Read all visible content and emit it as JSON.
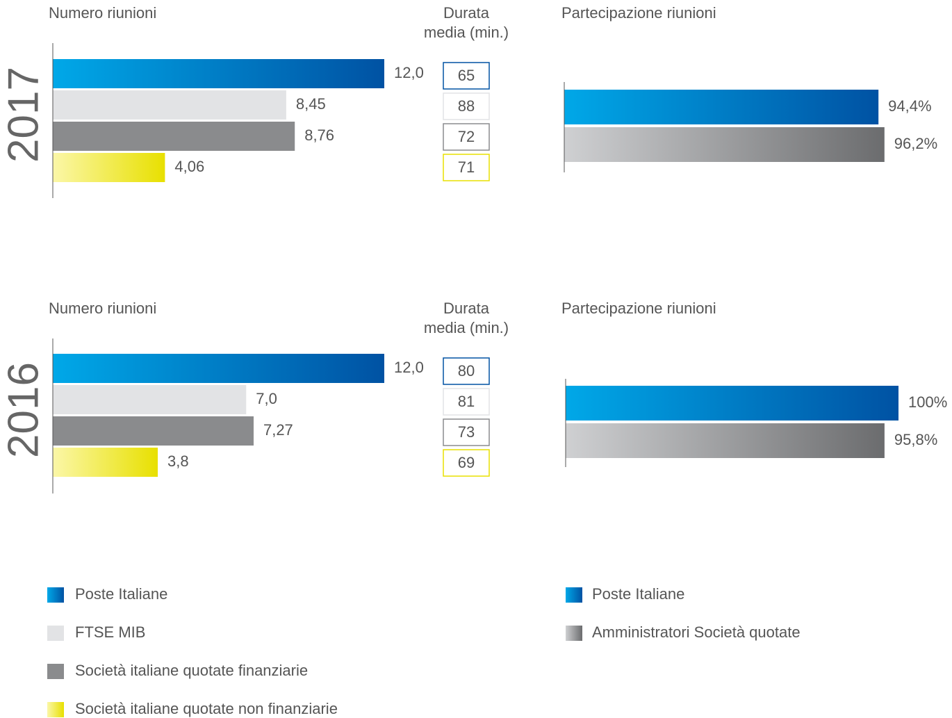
{
  "chart_data": [
    {
      "type": "bar",
      "orientation": "horizontal",
      "year": "2017",
      "title": "Numero riunioni",
      "categories": [
        "Poste Italiane",
        "FTSE MIB",
        "Società italiane quotate finanziarie",
        "Società italiane quotate non finanziarie"
      ],
      "values": [
        12,
        8.45,
        8.76,
        4.06
      ],
      "value_labels": [
        "12,0",
        "8,45",
        "8,76",
        "4,06"
      ],
      "colors": [
        [
          "#00a8e8",
          "#0052a3"
        ],
        [
          "#e2e3e5",
          "#e2e3e5"
        ],
        [
          "#8a8b8d",
          "#8a8b8d"
        ],
        [
          "#fbf7a8",
          "#e8e000"
        ]
      ],
      "xlim": [
        0,
        12
      ],
      "table_title": [
        "Durata",
        "media (min.)"
      ],
      "table_values": [
        65,
        88,
        72,
        71
      ]
    },
    {
      "type": "bar",
      "orientation": "horizontal",
      "title": "Partecipazione riunioni",
      "categories": [
        "Poste Italiane",
        "Amministratori Società quotate"
      ],
      "values": [
        94.4,
        96.2
      ],
      "value_labels": [
        "94,4%",
        "96,2%"
      ],
      "colors": [
        [
          "#00a8e8",
          "#0052a3"
        ],
        [
          "#cfd0d2",
          "#6b6c6e"
        ]
      ],
      "xlim": [
        0,
        100
      ]
    },
    {
      "type": "bar",
      "orientation": "horizontal",
      "year": "2016",
      "title": "Numero riunioni",
      "values": [
        12,
        7.0,
        7.27,
        3.8
      ],
      "value_labels": [
        "12,0",
        "7,0",
        "7,27",
        "3,8"
      ],
      "colors": [
        [
          "#00a8e8",
          "#0052a3"
        ],
        [
          "#e2e3e5",
          "#e2e3e5"
        ],
        [
          "#8a8b8d",
          "#8a8b8d"
        ],
        [
          "#fbf7a8",
          "#e8e000"
        ]
      ],
      "xlim": [
        0,
        12
      ],
      "table_title": [
        "Durata",
        "media (min.)"
      ],
      "table_values": [
        80,
        81,
        73,
        69
      ]
    },
    {
      "type": "bar",
      "orientation": "horizontal",
      "title": "Partecipazione riunioni",
      "values": [
        100,
        95.8
      ],
      "value_labels": [
        "100%",
        "95,8%"
      ],
      "colors": [
        [
          "#00a8e8",
          "#0052a3"
        ],
        [
          "#cfd0d2",
          "#6b6c6e"
        ]
      ],
      "xlim": [
        0,
        100
      ]
    }
  ]
}
